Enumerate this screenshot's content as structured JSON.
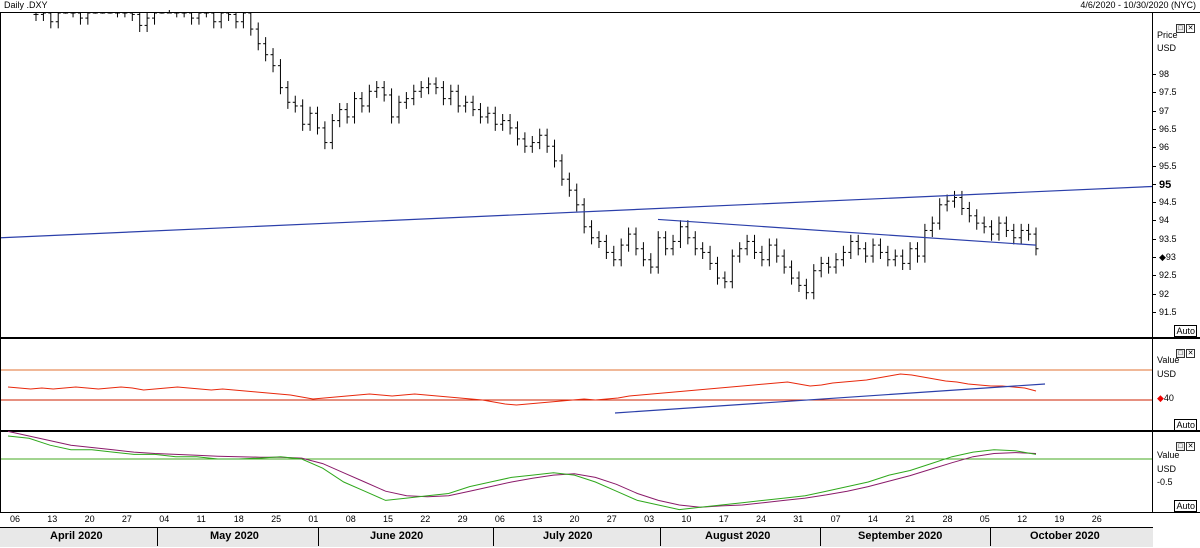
{
  "header": {
    "left_label": "Daily .DXY",
    "right_label": "4/6/2020 - 10/30/2020 (NYC)"
  },
  "panes": {
    "price": {
      "title_line1": "Price",
      "title_line2": "USD",
      "auto_label": "Auto",
      "ticks": [
        "98",
        "97.5",
        "97",
        "96.5",
        "96",
        "95.5",
        "95",
        "94.5",
        "94",
        "93.5",
        "93",
        "92.5",
        "92",
        "91.5"
      ],
      "highlight_tick": "95",
      "current_marker": "93"
    },
    "rsi": {
      "title_line1": "Value",
      "title_line2": "USD",
      "auto_label": "Auto",
      "ticks": [
        "40"
      ]
    },
    "macd": {
      "title_line1": "Value",
      "title_line2": "USD",
      "auto_label": "Auto",
      "ticks": [
        "-0.5"
      ]
    }
  },
  "xaxis": {
    "days": [
      "06",
      "13",
      "20",
      "27",
      "04",
      "11",
      "18",
      "25",
      "01",
      "08",
      "15",
      "22",
      "29",
      "06",
      "13",
      "20",
      "27",
      "03",
      "10",
      "17",
      "24",
      "31",
      "07",
      "14",
      "21",
      "28",
      "05",
      "12",
      "19",
      "26"
    ],
    "months": [
      "April 2020",
      "May 2020",
      "June 2020",
      "July 2020",
      "August 2020",
      "September 2020",
      "October 2020"
    ]
  },
  "colors": {
    "price_bars": "#000000",
    "trendline": "#2b3faa",
    "rsi_line": "#e8280c",
    "rsi_band": "#cc2200",
    "macd_line": "#2fa81c",
    "signal_line": "#8a1a6a",
    "macd_zero": "#44aa22"
  },
  "chart_data": [
    {
      "type": "ohlc",
      "series": [
        {
          "name": "",
          "closes": [
            99.6,
            99.7,
            99.4,
            99.8,
            99.9,
            99.7,
            99.5,
            99.9,
            99.8,
            99.9,
            99.8,
            99.7,
            99.9,
            99.6,
            99.3,
            99.5,
            99.8,
            99.9,
            99.9,
            99.7,
            99.8,
            99.5,
            99.9,
            99.7,
            99.4,
            99.9,
            99.6,
            99.4,
            99.7,
            99.2,
            98.8,
            98.5,
            98.2,
            97.6,
            97.2,
            97.1,
            96.6,
            96.9,
            96.5,
            96.1,
            96.7,
            97.0,
            96.8,
            97.3,
            97.1,
            97.5,
            97.6,
            97.4,
            96.8,
            97.2,
            97.3,
            97.5,
            97.6,
            97.7,
            97.6,
            97.3,
            97.5,
            97.1,
            97.2,
            97.0,
            96.8,
            96.9,
            96.6,
            96.7,
            96.5,
            96.2,
            96.0,
            96.1,
            96.3,
            96.0,
            95.6,
            95.1,
            94.8,
            94.4,
            93.8,
            93.5,
            93.4,
            93.1,
            92.9,
            93.3,
            93.6,
            93.2,
            92.9,
            92.7,
            93.5,
            93.2,
            93.4,
            93.8,
            93.5,
            93.2,
            93.1,
            92.8,
            92.4,
            92.3,
            93.0,
            93.2,
            93.4,
            93.1,
            92.9,
            93.3,
            93.0,
            92.7,
            92.4,
            92.2,
            92.0,
            92.6,
            92.8,
            92.7,
            92.9,
            93.1,
            93.4,
            93.2,
            93.0,
            93.3,
            93.1,
            92.9,
            93.0,
            92.8,
            93.2,
            93.0,
            93.7,
            93.9,
            94.4,
            94.5,
            94.6,
            94.3,
            94.1,
            93.9,
            93.8,
            93.6,
            93.9,
            93.7,
            93.5,
            93.7,
            93.6,
            93.2
          ]
        }
      ],
      "x_range": [
        "2020-04-06",
        "2020-10-30"
      ],
      "ylim": [
        91.3,
        100.0
      ],
      "annotations": [
        "rising trendline from 93.5 (Apr) to 94.9 (Oct)",
        "falling trendline from 94.0 (Aug 03) to 93.3 (Oct 09)"
      ]
    },
    {
      "type": "line",
      "series": [
        {
          "name": "",
          "values": [
            53,
            52,
            51,
            52,
            51,
            52,
            53,
            52,
            51,
            52,
            53,
            52,
            50,
            51,
            52,
            53,
            52,
            51,
            50,
            51,
            50,
            49,
            48,
            47,
            46,
            45,
            43,
            41,
            42,
            43,
            44,
            45,
            46,
            45,
            44,
            45,
            46,
            45,
            44,
            43,
            42,
            41,
            40,
            38,
            36,
            35,
            36,
            37,
            38,
            39,
            40,
            41,
            40,
            41,
            42,
            44,
            45,
            46,
            47,
            48,
            49,
            50,
            51,
            52,
            53,
            54,
            55,
            56,
            57,
            58,
            56,
            54,
            55,
            57,
            58,
            59,
            60,
            62,
            64,
            66,
            65,
            63,
            61,
            59,
            58,
            56,
            55,
            54,
            54,
            53,
            52,
            49
          ]
        }
      ],
      "bands": [
        70,
        40
      ]
    },
    {
      "type": "line",
      "series": [
        {
          "name": "",
          "values": [
            0.5,
            0.45,
            0.3,
            0.2,
            0.2,
            0.15,
            0.1,
            0.1,
            0.05,
            0.05,
            0.0,
            0.0,
            0.02,
            0.05,
            0.0,
            -0.2,
            -0.5,
            -0.7,
            -0.9,
            -0.85,
            -0.8,
            -0.75,
            -0.6,
            -0.5,
            -0.4,
            -0.35,
            -0.3,
            -0.35,
            -0.5,
            -0.7,
            -0.9,
            -1.0,
            -1.1,
            -1.05,
            -1.0,
            -0.95,
            -0.9,
            -0.85,
            -0.8,
            -0.7,
            -0.6,
            -0.5,
            -0.35,
            -0.25,
            -0.1,
            0.05,
            0.15,
            0.2,
            0.18,
            0.1
          ]
        },
        {
          "name": "",
          "values": [
            0.6,
            0.5,
            0.4,
            0.3,
            0.25,
            0.2,
            0.15,
            0.12,
            0.1,
            0.08,
            0.06,
            0.05,
            0.04,
            0.04,
            0.02,
            -0.1,
            -0.3,
            -0.5,
            -0.7,
            -0.8,
            -0.82,
            -0.8,
            -0.7,
            -0.6,
            -0.5,
            -0.42,
            -0.35,
            -0.32,
            -0.4,
            -0.55,
            -0.75,
            -0.9,
            -1.0,
            -1.05,
            -1.02,
            -1.0,
            -0.95,
            -0.9,
            -0.85,
            -0.78,
            -0.7,
            -0.6,
            -0.48,
            -0.36,
            -0.22,
            -0.08,
            0.05,
            0.12,
            0.14,
            0.12
          ]
        }
      ]
    }
  ]
}
